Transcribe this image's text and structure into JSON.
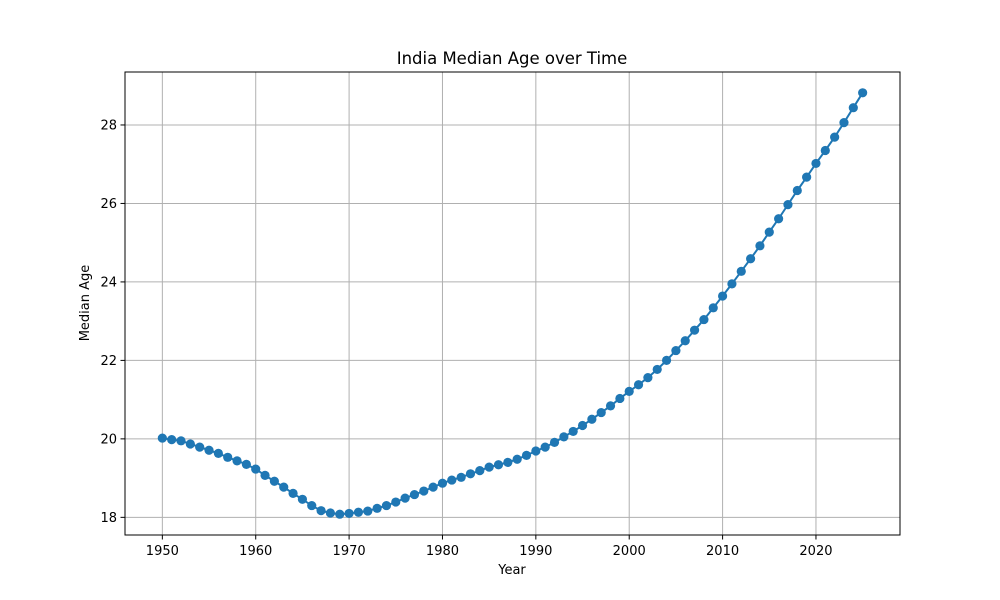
{
  "chart_data": {
    "type": "line",
    "title": "India Median Age over Time",
    "xlabel": "Year",
    "ylabel": "Median Age",
    "xlim": [
      1946,
      2029
    ],
    "ylim": [
      17.55,
      29.35
    ],
    "xticks": [
      1950,
      1960,
      1970,
      1980,
      1990,
      2000,
      2010,
      2020
    ],
    "yticks": [
      18,
      20,
      22,
      24,
      26,
      28
    ],
    "grid": true,
    "marker": "circle",
    "color": "#1f77b4",
    "series": [
      {
        "x": [
          1950,
          1951,
          1952,
          1953,
          1954,
          1955,
          1956,
          1957,
          1958,
          1959,
          1960,
          1961,
          1962,
          1963,
          1964,
          1965,
          1966,
          1967,
          1968,
          1969,
          1970,
          1971,
          1972,
          1973,
          1974,
          1975,
          1976,
          1977,
          1978,
          1979,
          1980,
          1981,
          1982,
          1983,
          1984,
          1985,
          1986,
          1987,
          1988,
          1989,
          1990,
          1991,
          1992,
          1993,
          1994,
          1995,
          1996,
          1997,
          1998,
          1999,
          2000,
          2001,
          2002,
          2003,
          2004,
          2005,
          2006,
          2007,
          2008,
          2009,
          2010,
          2011,
          2012,
          2013,
          2014,
          2015,
          2016,
          2017,
          2018,
          2019,
          2020,
          2021,
          2022,
          2023,
          2024,
          2025
        ],
        "y": [
          20.02,
          19.98,
          19.95,
          19.87,
          19.79,
          19.71,
          19.63,
          19.53,
          19.44,
          19.35,
          19.23,
          19.07,
          18.92,
          18.77,
          18.61,
          18.46,
          18.3,
          18.17,
          18.11,
          18.08,
          18.1,
          18.13,
          18.16,
          18.23,
          18.3,
          18.39,
          18.49,
          18.58,
          18.67,
          18.77,
          18.87,
          18.95,
          19.02,
          19.11,
          19.19,
          19.28,
          19.34,
          19.4,
          19.48,
          19.58,
          19.69,
          19.79,
          19.91,
          20.05,
          20.19,
          20.34,
          20.5,
          20.67,
          20.84,
          21.03,
          21.21,
          21.38,
          21.56,
          21.77,
          22.0,
          22.25,
          22.5,
          22.77,
          23.04,
          23.34,
          23.64,
          23.95,
          24.27,
          24.59,
          24.92,
          25.27,
          25.61,
          25.97,
          26.33,
          26.67,
          27.02,
          27.35,
          27.69,
          28.06,
          28.44,
          28.82
        ]
      }
    ]
  }
}
